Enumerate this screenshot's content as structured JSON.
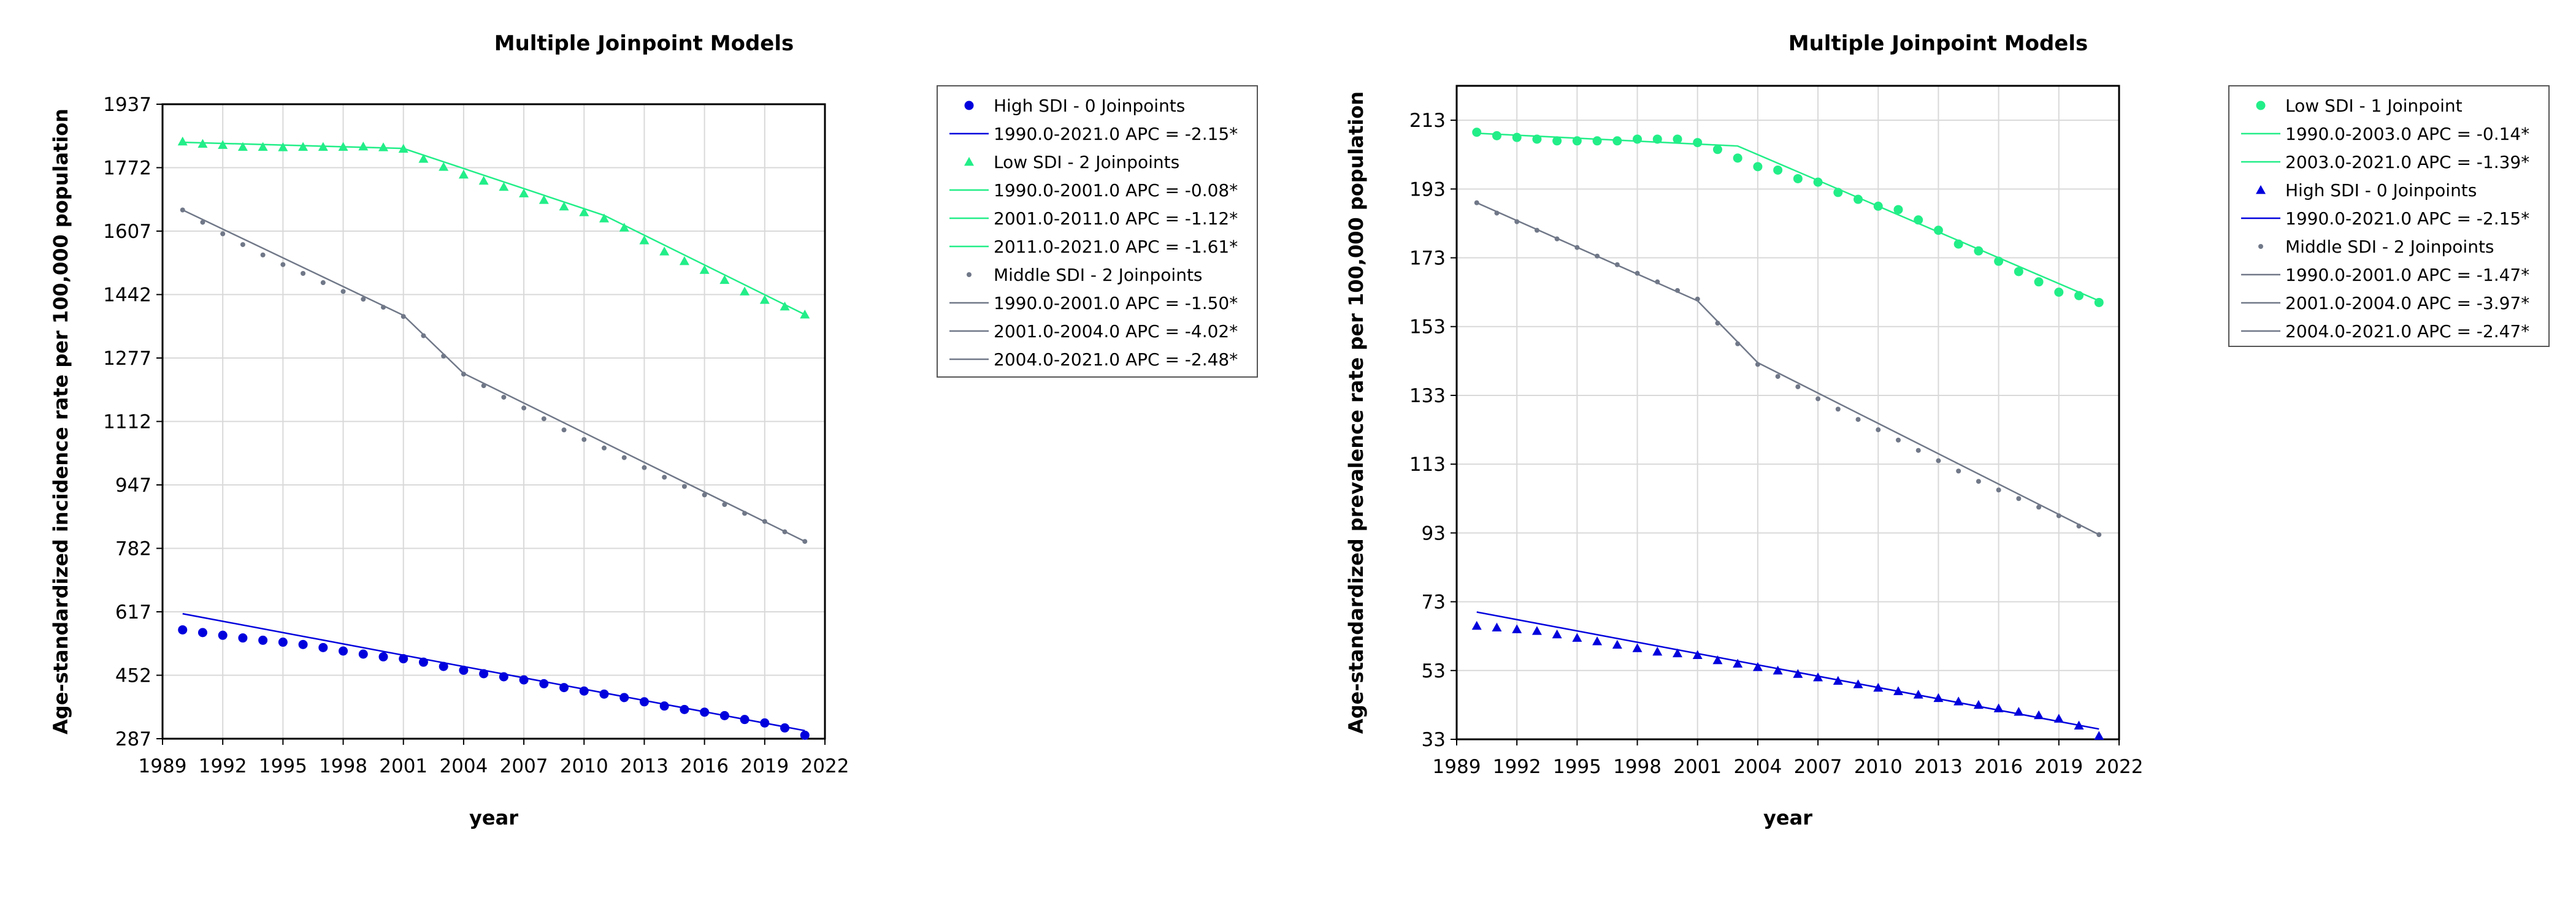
{
  "chart_data": [
    {
      "type": "line",
      "title": "Multiple Joinpoint Models",
      "xlabel": "year",
      "ylabel": "Age-standardized incidence rate per 100,000 population",
      "xlim": [
        1989,
        2022
      ],
      "ylim": [
        287,
        1937
      ],
      "x_ticks": [
        "1989",
        "1992",
        "1995",
        "1998",
        "2001",
        "2004",
        "2007",
        "2010",
        "2013",
        "2016",
        "2019",
        "2022"
      ],
      "y_ticks": [
        "287",
        "452",
        "617",
        "782",
        "947",
        "1112",
        "1277",
        "1442",
        "1607",
        "1772",
        "1937"
      ],
      "grid": true,
      "legend_position": "right",
      "series": [
        {
          "name": "High SDI - 0 Joinpoints",
          "color": "#0000dd",
          "marker": "circle",
          "observed": {
            "x": [
              1990,
              1991,
              1992,
              1993,
              1994,
              1995,
              1996,
              1997,
              1998,
              1999,
              2000,
              2001,
              2002,
              2003,
              2004,
              2005,
              2006,
              2007,
              2008,
              2009,
              2010,
              2011,
              2012,
              2013,
              2014,
              2015,
              2016,
              2017,
              2018,
              2019,
              2020,
              2021
            ],
            "y": [
              570,
              563,
              556,
              549,
              543,
              538,
              532,
              524,
              515,
              507,
              500,
              495,
              486,
              475,
              465,
              456,
              448,
              440,
              430,
              420,
              411,
              403,
              394,
              383,
              372,
              363,
              356,
              347,
              337,
              328,
              315,
              296
            ]
          },
          "fitted": {
            "x": [
              1990,
              2021
            ],
            "y": [
              612,
              308
            ]
          },
          "segments": [
            {
              "label": "1990.0-2021.0 APC  =  -2.15*"
            }
          ]
        },
        {
          "name": "Low SDI - 2 Joinpoints",
          "color": "#22ee88",
          "marker": "triangle",
          "observed": {
            "x": [
              1990,
              1991,
              1992,
              1993,
              1994,
              1995,
              1996,
              1997,
              1998,
              1999,
              2000,
              2001,
              2002,
              2003,
              2004,
              2005,
              2006,
              2007,
              2008,
              2009,
              2010,
              2011,
              2012,
              2013,
              2014,
              2015,
              2016,
              2017,
              2018,
              2019,
              2020,
              2021
            ],
            "y": [
              1840,
              1834,
              1831,
              1826,
              1826,
              1825,
              1826,
              1826,
              1826,
              1827,
              1825,
              1821,
              1795,
              1774,
              1754,
              1738,
              1722,
              1705,
              1688,
              1671,
              1656,
              1640,
              1616,
              1583,
              1554,
              1529,
              1506,
              1480,
              1450,
              1428,
              1411,
              1390
            ]
          },
          "fitted": {
            "x": [
              1990,
              2001,
              2011,
              2021
            ],
            "y": [
              1838,
              1822,
              1648,
              1390
            ]
          },
          "segments": [
            {
              "label": "1990.0-2001.0 APC  =  -0.08*"
            },
            {
              "label": "2001.0-2011.0 APC  =  -1.12*"
            },
            {
              "label": "2011.0-2021.0 APC  =  -1.61*"
            }
          ]
        },
        {
          "name": "Middle SDI - 2 Joinpoints",
          "color": "#707888",
          "marker": "dot",
          "observed": {
            "x": [
              1990,
              1991,
              1992,
              1993,
              1994,
              1995,
              1996,
              1997,
              1998,
              1999,
              2000,
              2001,
              2002,
              2003,
              2004,
              2005,
              2006,
              2007,
              2008,
              2009,
              2010,
              2011,
              2012,
              2013,
              2014,
              2015,
              2016,
              2017,
              2018,
              2019,
              2020,
              2021
            ],
            "y": [
              1662,
              1630,
              1600,
              1572,
              1545,
              1520,
              1497,
              1473,
              1450,
              1430,
              1409,
              1385,
              1335,
              1282,
              1235,
              1205,
              1175,
              1147,
              1119,
              1090,
              1065,
              1043,
              1018,
              992,
              967,
              943,
              921,
              896,
              873,
              852,
              825,
              800
            ]
          },
          "fitted": {
            "x": [
              1990,
              2001,
              2004,
              2021
            ],
            "y": [
              1662,
              1388,
              1237,
              800
            ]
          },
          "segments": [
            {
              "label": "1990.0-2001.0 APC  =  -1.50*"
            },
            {
              "label": "2001.0-2004.0 APC  =  -4.02*"
            },
            {
              "label": "2004.0-2021.0 APC  =  -2.48*"
            }
          ]
        }
      ]
    },
    {
      "type": "line",
      "title": "Multiple Joinpoint Models",
      "xlabel": "year",
      "ylabel": "Age-standardized prevalence rate per 100,000 population",
      "xlim": [
        1989,
        2022
      ],
      "ylim": [
        33,
        223
      ],
      "x_ticks": [
        "1989",
        "1992",
        "1995",
        "1998",
        "2001",
        "2004",
        "2007",
        "2010",
        "2013",
        "2016",
        "2019",
        "2022"
      ],
      "y_ticks": [
        "33",
        "53",
        "73",
        "93",
        "113",
        "133",
        "153",
        "173",
        "193",
        "213"
      ],
      "grid": true,
      "legend_position": "right",
      "series": [
        {
          "name": "Low SDI - 1 Joinpoint",
          "color": "#22ee88",
          "marker": "circle",
          "observed": {
            "x": [
              1990,
              1991,
              1992,
              1993,
              1994,
              1995,
              1996,
              1997,
              1998,
              1999,
              2000,
              2001,
              2002,
              2003,
              2004,
              2005,
              2006,
              2007,
              2008,
              2009,
              2010,
              2011,
              2012,
              2013,
              2014,
              2015,
              2016,
              2017,
              2018,
              2019,
              2020,
              2021
            ],
            "y": [
              209.5,
              208.5,
              208,
              207.5,
              207,
              207,
              207,
              207,
              207.5,
              207.5,
              207.5,
              206.5,
              204.5,
              202,
              199.5,
              198.5,
              196,
              195,
              192,
              190,
              188,
              187,
              184,
              181,
              177,
              175,
              172,
              169,
              166,
              163,
              162,
              160
            ]
          },
          "fitted": {
            "x": [
              1990,
              2003,
              2021
            ],
            "y": [
              209.2,
              205.5,
              160.5
            ]
          },
          "segments": [
            {
              "label": "1990.0-2003.0 APC  =  -0.14*"
            },
            {
              "label": "2003.0-2021.0 APC  =  -1.39*"
            }
          ]
        },
        {
          "name": "High SDI - 0 Joinpoints",
          "color": "#0000dd",
          "marker": "triangle",
          "observed": {
            "x": [
              1990,
              1991,
              1992,
              1993,
              1994,
              1995,
              1996,
              1997,
              1998,
              1999,
              2000,
              2001,
              2002,
              2003,
              2004,
              2005,
              2006,
              2007,
              2008,
              2009,
              2010,
              2011,
              2012,
              2013,
              2014,
              2015,
              2016,
              2017,
              2018,
              2019,
              2020,
              2021
            ],
            "y": [
              66,
              65.5,
              65,
              64.5,
              63.5,
              62.5,
              61.5,
              60.5,
              59.5,
              58.5,
              58,
              57.5,
              56,
              55,
              54,
              53,
              52,
              51,
              50,
              49,
              48,
              47,
              46,
              45,
              44,
              43,
              42,
              41,
              40,
              39,
              37,
              34
            ]
          },
          "fitted": {
            "x": [
              1990,
              2021
            ],
            "y": [
              70,
              36
            ]
          },
          "segments": [
            {
              "label": "1990.0-2021.0 APC  =  -2.15*"
            }
          ]
        },
        {
          "name": "Middle SDI - 2 Joinpoints",
          "color": "#707888",
          "marker": "dot",
          "observed": {
            "x": [
              1990,
              1991,
              1992,
              1993,
              1994,
              1995,
              1996,
              1997,
              1998,
              1999,
              2000,
              2001,
              2002,
              2003,
              2004,
              2005,
              2006,
              2007,
              2008,
              2009,
              2010,
              2011,
              2012,
              2013,
              2014,
              2015,
              2016,
              2017,
              2018,
              2019,
              2020,
              2021
            ],
            "y": [
              189,
              186,
              183.5,
              181,
              178.5,
              176,
              173.5,
              171,
              168.5,
              166,
              163.5,
              161,
              154,
              148,
              142,
              138.5,
              135.5,
              132,
              129,
              126,
              123,
              120,
              117,
              114,
              111,
              108,
              105.5,
              103,
              100.5,
              98,
              95,
              92.5
            ]
          },
          "fitted": {
            "x": [
              1990,
              2001,
              2004,
              2021
            ],
            "y": [
              189,
              160.5,
              142.5,
              92.5
            ]
          },
          "segments": [
            {
              "label": "1990.0-2001.0 APC  =  -1.47*"
            },
            {
              "label": "2001.0-2004.0 APC  =  -3.97*"
            },
            {
              "label": "2004.0-2021.0 APC  =  -2.47*"
            }
          ]
        }
      ]
    }
  ]
}
